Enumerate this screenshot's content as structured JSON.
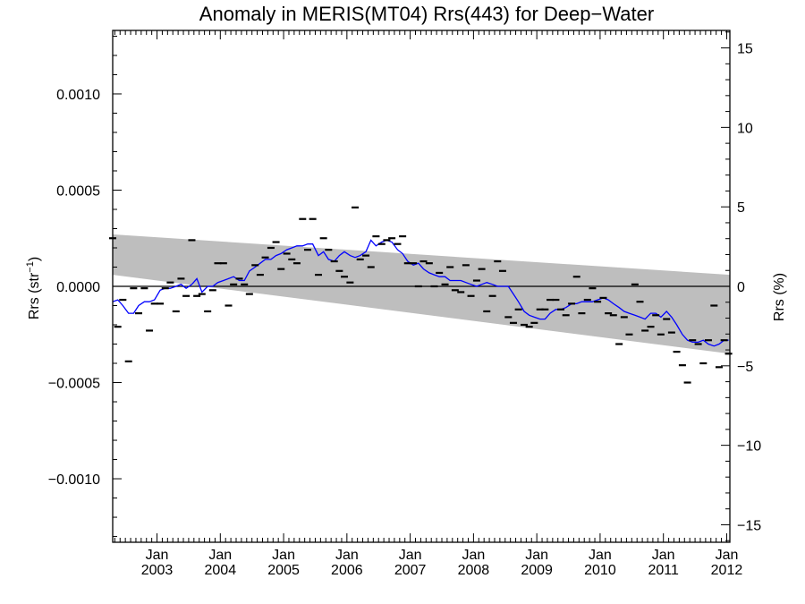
{
  "chart_data": {
    "type": "scatter",
    "title": "Anomaly in MERIS(MT04) Rrs(443) for Deep−Water",
    "ylabel_left": "Rrs (str",
    "ylabel_left_sup": "−1",
    "ylabel_left_close": ")",
    "ylabel_right": "Rrs (%)",
    "xlim": [
      2002.3,
      2012.05
    ],
    "ylim_left": [
      -0.00133,
      0.00133
    ],
    "ylim_right": [
      -16.1,
      16.1
    ],
    "x_ticks": [
      {
        "x": 2003.0,
        "month": "Jan",
        "year": "2003"
      },
      {
        "x": 2004.0,
        "month": "Jan",
        "year": "2004"
      },
      {
        "x": 2005.0,
        "month": "Jan",
        "year": "2005"
      },
      {
        "x": 2006.0,
        "month": "Jan",
        "year": "2006"
      },
      {
        "x": 2007.0,
        "month": "Jan",
        "year": "2007"
      },
      {
        "x": 2008.0,
        "month": "Jan",
        "year": "2008"
      },
      {
        "x": 2009.0,
        "month": "Jan",
        "year": "2009"
      },
      {
        "x": 2010.0,
        "month": "Jan",
        "year": "2010"
      },
      {
        "x": 2011.0,
        "month": "Jan",
        "year": "2011"
      },
      {
        "x": 2012.0,
        "month": "Jan",
        "year": "2012"
      }
    ],
    "y_ticks_left": [
      {
        "value": 0.001,
        "label": "0.0010"
      },
      {
        "value": 0.0005,
        "label": "0.0005"
      },
      {
        "value": 0.0,
        "label": "0.0000"
      },
      {
        "value": -0.0005,
        "label": "−0.0005"
      },
      {
        "value": -0.001,
        "label": "−0.0010"
      }
    ],
    "y_ticks_right": [
      {
        "value": 15,
        "label": "15"
      },
      {
        "value": 10,
        "label": "10"
      },
      {
        "value": 5,
        "label": "5"
      },
      {
        "value": 0,
        "label": "0"
      },
      {
        "value": -5,
        "label": "−5"
      },
      {
        "value": -10,
        "label": "−10"
      },
      {
        "value": -15,
        "label": "−15"
      }
    ],
    "band": {
      "x": [
        2002.3,
        2012.05
      ],
      "upper": [
        0.00027,
        6e-05
      ],
      "lower": [
        6e-05,
        -0.00035
      ],
      "color": "#bebebe"
    },
    "zero_line": 0,
    "points": [
      {
        "x": 2002.3,
        "y": 0.00025
      },
      {
        "x": 2002.38,
        "y": -0.00021
      },
      {
        "x": 2002.46,
        "y": -7e-05
      },
      {
        "x": 2002.55,
        "y": -0.00039
      },
      {
        "x": 2002.63,
        "y": -1e-05
      },
      {
        "x": 2002.71,
        "y": -0.00014
      },
      {
        "x": 2002.8,
        "y": -1e-05
      },
      {
        "x": 2002.88,
        "y": -0.00023
      },
      {
        "x": 2002.96,
        "y": -9e-05
      },
      {
        "x": 2003.05,
        "y": -9e-05
      },
      {
        "x": 2003.13,
        "y": -1e-05
      },
      {
        "x": 2003.21,
        "y": 2e-05
      },
      {
        "x": 2003.3,
        "y": -0.00013
      },
      {
        "x": 2003.38,
        "y": 4e-05
      },
      {
        "x": 2003.46,
        "y": -5e-05
      },
      {
        "x": 2003.55,
        "y": 0.00024
      },
      {
        "x": 2003.63,
        "y": -5e-05
      },
      {
        "x": 2003.71,
        "y": -4e-05
      },
      {
        "x": 2003.8,
        "y": -0.00013
      },
      {
        "x": 2003.88,
        "y": -2e-05
      },
      {
        "x": 2003.96,
        "y": 0.00012
      },
      {
        "x": 2004.05,
        "y": 0.00012
      },
      {
        "x": 2004.13,
        "y": -0.0001
      },
      {
        "x": 2004.21,
        "y": 1e-05
      },
      {
        "x": 2004.3,
        "y": 4e-05
      },
      {
        "x": 2004.38,
        "y": 1e-05
      },
      {
        "x": 2004.46,
        "y": -4e-05
      },
      {
        "x": 2004.55,
        "y": 0.00011
      },
      {
        "x": 2004.63,
        "y": 6e-05
      },
      {
        "x": 2004.71,
        "y": 0.00015
      },
      {
        "x": 2004.8,
        "y": 0.0002
      },
      {
        "x": 2004.88,
        "y": 0.00023
      },
      {
        "x": 2004.96,
        "y": 9e-05
      },
      {
        "x": 2005.05,
        "y": 0.00017
      },
      {
        "x": 2005.13,
        "y": 0.00014
      },
      {
        "x": 2005.21,
        "y": 0.00012
      },
      {
        "x": 2005.3,
        "y": 0.00035
      },
      {
        "x": 2005.38,
        "y": 0.00019
      },
      {
        "x": 2005.46,
        "y": 0.00035
      },
      {
        "x": 2005.55,
        "y": 6e-05
      },
      {
        "x": 2005.63,
        "y": 0.00025
      },
      {
        "x": 2005.71,
        "y": 0.00019
      },
      {
        "x": 2005.8,
        "y": 0.00013
      },
      {
        "x": 2005.88,
        "y": 8e-05
      },
      {
        "x": 2005.96,
        "y": 5e-05
      },
      {
        "x": 2006.05,
        "y": 2e-05
      },
      {
        "x": 2006.13,
        "y": 0.00041
      },
      {
        "x": 2006.21,
        "y": 0.00014
      },
      {
        "x": 2006.3,
        "y": 0.00016
      },
      {
        "x": 2006.38,
        "y": 0.0001
      },
      {
        "x": 2006.46,
        "y": 0.00026
      },
      {
        "x": 2006.55,
        "y": 0.00022
      },
      {
        "x": 2006.63,
        "y": 0.00024
      },
      {
        "x": 2006.71,
        "y": 0.00025
      },
      {
        "x": 2006.8,
        "y": 0.00022
      },
      {
        "x": 2006.88,
        "y": 0.00026
      },
      {
        "x": 2006.96,
        "y": 0.00012
      },
      {
        "x": 2007.05,
        "y": 0.00012
      },
      {
        "x": 2007.13,
        "y": 0.0
      },
      {
        "x": 2007.21,
        "y": 0.00013
      },
      {
        "x": 2007.3,
        "y": 0.00012
      },
      {
        "x": 2007.38,
        "y": 0.0
      },
      {
        "x": 2007.46,
        "y": 7e-05
      },
      {
        "x": 2007.55,
        "y": 1e-05
      },
      {
        "x": 2007.63,
        "y": 0.0001
      },
      {
        "x": 2007.71,
        "y": -2e-05
      },
      {
        "x": 2007.8,
        "y": -3e-05
      },
      {
        "x": 2007.88,
        "y": 0.00011
      },
      {
        "x": 2007.96,
        "y": -5e-05
      },
      {
        "x": 2008.05,
        "y": 3e-05
      },
      {
        "x": 2008.13,
        "y": 9e-05
      },
      {
        "x": 2008.21,
        "y": -0.00013
      },
      {
        "x": 2008.3,
        "y": -5e-05
      },
      {
        "x": 2008.38,
        "y": 0.00013
      },
      {
        "x": 2008.46,
        "y": 8e-05
      },
      {
        "x": 2008.55,
        "y": -0.00016
      },
      {
        "x": 2008.63,
        "y": -0.00019
      },
      {
        "x": 2008.71,
        "y": -0.00012
      },
      {
        "x": 2008.8,
        "y": -0.0002
      },
      {
        "x": 2008.88,
        "y": -0.00021
      },
      {
        "x": 2008.96,
        "y": -0.00019
      },
      {
        "x": 2009.05,
        "y": -0.00012
      },
      {
        "x": 2009.13,
        "y": -0.00012
      },
      {
        "x": 2009.21,
        "y": -7e-05
      },
      {
        "x": 2009.3,
        "y": -7e-05
      },
      {
        "x": 2009.38,
        "y": -0.00012
      },
      {
        "x": 2009.46,
        "y": -0.00015
      },
      {
        "x": 2009.55,
        "y": -9e-05
      },
      {
        "x": 2009.63,
        "y": 5e-05
      },
      {
        "x": 2009.71,
        "y": -0.00014
      },
      {
        "x": 2009.8,
        "y": -7e-05
      },
      {
        "x": 2009.88,
        "y": -1e-05
      },
      {
        "x": 2009.96,
        "y": -8e-05
      },
      {
        "x": 2010.05,
        "y": -6e-05
      },
      {
        "x": 2010.13,
        "y": -0.00014
      },
      {
        "x": 2010.21,
        "y": -0.00015
      },
      {
        "x": 2010.3,
        "y": -0.0003
      },
      {
        "x": 2010.38,
        "y": -0.00016
      },
      {
        "x": 2010.46,
        "y": -0.00025
      },
      {
        "x": 2010.55,
        "y": 1e-05
      },
      {
        "x": 2010.63,
        "y": -8e-05
      },
      {
        "x": 2010.71,
        "y": -0.00023
      },
      {
        "x": 2010.8,
        "y": -0.00021
      },
      {
        "x": 2010.88,
        "y": -0.00015
      },
      {
        "x": 2010.96,
        "y": -0.00025
      },
      {
        "x": 2011.05,
        "y": -0.00017
      },
      {
        "x": 2011.13,
        "y": -0.00024
      },
      {
        "x": 2011.21,
        "y": -0.00034
      },
      {
        "x": 2011.3,
        "y": -0.00041
      },
      {
        "x": 2011.38,
        "y": -0.0005
      },
      {
        "x": 2011.46,
        "y": -0.00028
      },
      {
        "x": 2011.55,
        "y": -0.0003
      },
      {
        "x": 2011.63,
        "y": -0.0004
      },
      {
        "x": 2011.71,
        "y": -0.00028
      },
      {
        "x": 2011.8,
        "y": -0.0001
      },
      {
        "x": 2011.88,
        "y": -0.00042
      },
      {
        "x": 2011.96,
        "y": -0.00028
      },
      {
        "x": 2012.03,
        "y": -0.00035
      }
    ],
    "smooth_line": {
      "color": "#0000ff",
      "x": [
        2002.3,
        2002.38,
        2002.46,
        2002.55,
        2002.63,
        2002.71,
        2002.8,
        2002.88,
        2002.96,
        2003.05,
        2003.13,
        2003.21,
        2003.3,
        2003.38,
        2003.46,
        2003.55,
        2003.63,
        2003.71,
        2003.8,
        2003.88,
        2003.96,
        2004.05,
        2004.13,
        2004.21,
        2004.3,
        2004.38,
        2004.46,
        2004.55,
        2004.63,
        2004.71,
        2004.8,
        2004.88,
        2004.96,
        2005.05,
        2005.13,
        2005.21,
        2005.3,
        2005.38,
        2005.46,
        2005.55,
        2005.63,
        2005.71,
        2005.8,
        2005.88,
        2005.96,
        2006.05,
        2006.13,
        2006.21,
        2006.3,
        2006.38,
        2006.46,
        2006.55,
        2006.63,
        2006.71,
        2006.8,
        2006.88,
        2006.96,
        2007.05,
        2007.13,
        2007.21,
        2007.3,
        2007.38,
        2007.46,
        2007.55,
        2007.63,
        2007.71,
        2007.8,
        2007.88,
        2007.96,
        2008.05,
        2008.13,
        2008.21,
        2008.3,
        2008.38,
        2008.46,
        2008.55,
        2008.63,
        2008.71,
        2008.8,
        2008.88,
        2008.96,
        2009.05,
        2009.13,
        2009.21,
        2009.3,
        2009.38,
        2009.46,
        2009.55,
        2009.63,
        2009.71,
        2009.8,
        2009.88,
        2009.96,
        2010.05,
        2010.13,
        2010.21,
        2010.3,
        2010.38,
        2010.46,
        2010.55,
        2010.63,
        2010.71,
        2010.8,
        2010.88,
        2010.96,
        2011.05,
        2011.13,
        2011.21,
        2011.3,
        2011.38,
        2011.46,
        2011.55,
        2011.63,
        2011.71,
        2011.8,
        2011.88,
        2011.96,
        2012.03
      ],
      "y": [
        -8e-05,
        -7e-05,
        -0.0001,
        -0.00014,
        -0.00014,
        -0.0001,
        -8e-05,
        -8e-05,
        -7e-05,
        -2e-05,
        -1e-05,
        -1e-05,
        0.0,
        1e-05,
        -1e-05,
        1e-05,
        4e-05,
        -3e-05,
        0.0,
        0.0,
        2e-05,
        3e-05,
        4e-05,
        5e-05,
        3e-05,
        3e-05,
        8e-05,
        0.0001,
        0.00012,
        0.00014,
        0.00014,
        0.00016,
        0.00017,
        0.00019,
        0.0002,
        0.00021,
        0.00021,
        0.00022,
        0.00022,
        0.00016,
        0.00018,
        0.00014,
        0.00013,
        0.00016,
        0.00018,
        0.00016,
        0.00015,
        0.00016,
        0.00018,
        0.00024,
        0.00021,
        0.00023,
        0.00024,
        0.00023,
        0.00019,
        0.00017,
        0.00013,
        0.00011,
        0.00012,
        9e-05,
        7e-05,
        6e-05,
        5e-05,
        5e-05,
        3e-05,
        3e-05,
        3e-05,
        2e-05,
        1e-05,
        0.0,
        1e-05,
        2e-05,
        1e-05,
        0.0,
        0.0,
        0.0,
        -4e-05,
        -8e-05,
        -0.00013,
        -0.00015,
        -0.00016,
        -0.00017,
        -0.00017,
        -0.00014,
        -0.00012,
        -0.00012,
        -0.00011,
        -9e-05,
        -9e-05,
        -8e-05,
        -8e-05,
        -8e-05,
        -7e-05,
        -6e-05,
        -7e-05,
        -9e-05,
        -0.00011,
        -0.00013,
        -0.00014,
        -0.00015,
        -0.00016,
        -0.00017,
        -0.00014,
        -0.00014,
        -0.00016,
        -0.00013,
        -0.00016,
        -0.0002,
        -0.00025,
        -0.00028,
        -0.00029,
        -0.00029,
        -0.00028,
        -0.0003,
        -0.00031,
        -0.0003,
        -0.00028,
        -0.00028
      ]
    }
  }
}
